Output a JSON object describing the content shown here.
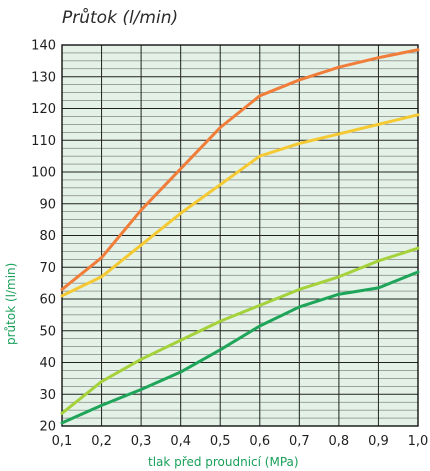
{
  "chart_data": {
    "type": "line",
    "title": "Průtok (l/min)",
    "xlabel": "tlak před proudnicí (MPa)",
    "ylabel": "průtok (l/min)",
    "xlim": [
      0.1,
      1.0
    ],
    "ylim": [
      20,
      140
    ],
    "x_ticks": [
      "0,1",
      "0,2",
      "0,3",
      "0,4",
      "0,5",
      "0,6",
      "0,7",
      "0,8",
      "0,9",
      "1,0"
    ],
    "y_ticks": [
      "20",
      "30",
      "40",
      "50",
      "60",
      "70",
      "80",
      "90",
      "100",
      "110",
      "120",
      "130",
      "140"
    ],
    "grid": true,
    "plot_background": "#e3f1e6",
    "series": [
      {
        "color": "#f07d3a",
        "x": [
          0.1,
          0.2,
          0.3,
          0.4,
          0.5,
          0.6,
          0.7,
          0.8,
          0.9,
          1.0
        ],
        "values": [
          63,
          73,
          88,
          101,
          114,
          124,
          129,
          133,
          136,
          138.5
        ]
      },
      {
        "color": "#f5c932",
        "x": [
          0.1,
          0.2,
          0.3,
          0.4,
          0.5,
          0.6,
          0.7,
          0.8,
          0.9,
          1.0
        ],
        "values": [
          61,
          67,
          77,
          87,
          96,
          105,
          109,
          112,
          115,
          118
        ]
      },
      {
        "color": "#a5d13b",
        "x": [
          0.1,
          0.2,
          0.3,
          0.4,
          0.5,
          0.6,
          0.7,
          0.8,
          0.9,
          1.0
        ],
        "values": [
          24,
          34,
          41,
          47,
          53,
          58,
          63,
          67,
          72,
          76
        ]
      },
      {
        "color": "#1fa55a",
        "x": [
          0.1,
          0.2,
          0.3,
          0.4,
          0.5,
          0.6,
          0.7,
          0.8,
          0.9,
          1.0
        ],
        "values": [
          21,
          26.5,
          31.5,
          37,
          44,
          51.5,
          57.5,
          61.5,
          63.5,
          68.5
        ]
      }
    ]
  }
}
